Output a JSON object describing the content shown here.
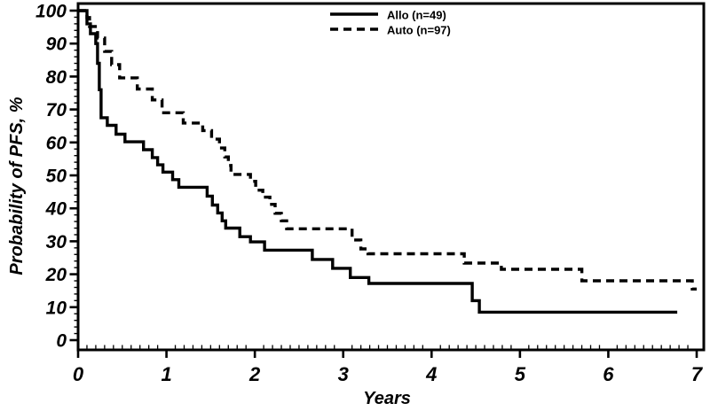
{
  "figure": {
    "background": "#ffffff",
    "line_color": "#000000"
  },
  "chart_data": {
    "type": "line",
    "subtype": "kaplan-meier-step-plot",
    "title": "",
    "xlabel": "Years",
    "ylabel": "Probability of PFS, %",
    "xlim": [
      0,
      7
    ],
    "ylim": [
      0,
      100
    ],
    "x_major_ticks": [
      0,
      1,
      2,
      3,
      4,
      5,
      6,
      7
    ],
    "x_minor_tick_interval": 0.1,
    "y_major_ticks": [
      0,
      10,
      20,
      30,
      40,
      50,
      60,
      70,
      80,
      90,
      100
    ],
    "y_minor_tick_interval": 2,
    "grid": false,
    "legend_position": "top-center-inside",
    "legend": [
      {
        "label": "Allo (n=49)",
        "style": "solid"
      },
      {
        "label": "Auto (n=97)",
        "style": "dashed"
      }
    ],
    "series": [
      {
        "name": "Allo (n=49)",
        "n": 49,
        "line_style": "solid",
        "color": "#000000",
        "end_x": 6.78,
        "steps": [
          [
            0,
            100
          ],
          [
            0.1,
            96
          ],
          [
            0.14,
            93
          ],
          [
            0.2,
            90
          ],
          [
            0.22,
            84
          ],
          [
            0.24,
            76
          ],
          [
            0.26,
            67.5
          ],
          [
            0.33,
            65.2
          ],
          [
            0.43,
            62.5
          ],
          [
            0.53,
            60.2
          ],
          [
            0.74,
            57.8
          ],
          [
            0.84,
            55.4
          ],
          [
            0.9,
            53.2
          ],
          [
            0.96,
            51.0
          ],
          [
            1.07,
            48.7
          ],
          [
            1.14,
            46.4
          ],
          [
            1.46,
            43.7
          ],
          [
            1.52,
            41.0
          ],
          [
            1.58,
            38.6
          ],
          [
            1.63,
            36.2
          ],
          [
            1.67,
            34.0
          ],
          [
            1.83,
            31.4
          ],
          [
            1.95,
            29.8
          ],
          [
            2.11,
            27.3
          ],
          [
            2.65,
            24.5
          ],
          [
            2.88,
            21.8
          ],
          [
            3.08,
            19.0
          ],
          [
            3.29,
            17.2
          ],
          [
            4.46,
            12.0
          ],
          [
            4.54,
            8.5
          ]
        ]
      },
      {
        "name": "Auto (n=97)",
        "n": 97,
        "line_style": "dashed",
        "color": "#000000",
        "end_x": 7.0,
        "steps": [
          [
            0,
            100
          ],
          [
            0.1,
            97.9
          ],
          [
            0.13,
            95.2
          ],
          [
            0.22,
            91.7
          ],
          [
            0.3,
            87.6
          ],
          [
            0.38,
            83.6
          ],
          [
            0.47,
            79.6
          ],
          [
            0.67,
            76.2
          ],
          [
            0.84,
            72.9
          ],
          [
            0.95,
            69.0
          ],
          [
            1.19,
            65.9
          ],
          [
            1.41,
            63.6
          ],
          [
            1.51,
            61.0
          ],
          [
            1.6,
            58.3
          ],
          [
            1.66,
            55.6
          ],
          [
            1.7,
            53.0
          ],
          [
            1.73,
            50.3
          ],
          [
            1.95,
            48.2
          ],
          [
            2.01,
            45.5
          ],
          [
            2.09,
            43.4
          ],
          [
            2.17,
            41.2
          ],
          [
            2.23,
            38.5
          ],
          [
            2.3,
            36.2
          ],
          [
            2.36,
            33.8
          ],
          [
            3.1,
            30.4
          ],
          [
            3.2,
            27.7
          ],
          [
            3.28,
            26.2
          ],
          [
            4.37,
            23.4
          ],
          [
            4.79,
            21.5
          ],
          [
            5.7,
            18.0
          ],
          [
            6.95,
            15.5
          ]
        ]
      }
    ]
  }
}
